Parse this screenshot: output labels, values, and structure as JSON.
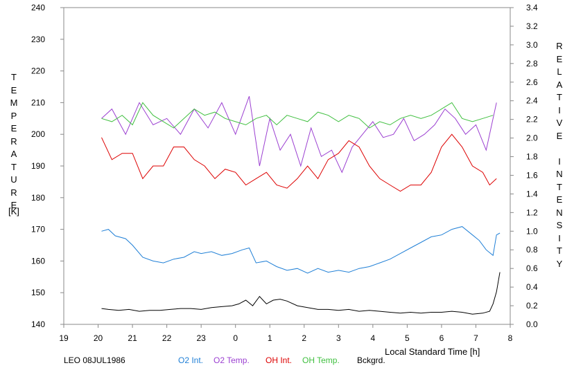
{
  "chart_data": {
    "type": "line",
    "xlabel": "Local Standard Time [h]",
    "ylabel_left": "TEMPERATURE",
    "ylabel_left_unit": "[K]",
    "ylabel_right": "RELATIVE INTENSITY",
    "x_ticks": [
      "19",
      "20",
      "21",
      "22",
      "23",
      "0",
      "1",
      "2",
      "3",
      "4",
      "5",
      "6",
      "7",
      "8"
    ],
    "xlim": [
      19,
      32
    ],
    "ylim_left": [
      140,
      240
    ],
    "ylim_right": [
      0.0,
      3.4
    ],
    "y_ticks_left": [
      "140",
      "150",
      "160",
      "170",
      "180",
      "190",
      "200",
      "210",
      "220",
      "230",
      "240"
    ],
    "y_ticks_right": [
      "0.0",
      "0.2",
      "0.4",
      "0.6",
      "0.8",
      "1.0",
      "1.2",
      "1.4",
      "1.6",
      "1.8",
      "2.0",
      "2.2",
      "2.4",
      "2.6",
      "2.8",
      "3.0",
      "3.2",
      "3.4"
    ],
    "station": "LEO 08JUL1986",
    "series": [
      {
        "name": "O2 Int.",
        "axis": "right",
        "color": "#1f7fd6",
        "x": [
          20.1,
          20.3,
          20.5,
          20.8,
          21.0,
          21.3,
          21.6,
          21.9,
          22.2,
          22.5,
          22.8,
          23.0,
          23.3,
          23.6,
          23.9,
          24.2,
          24.4,
          24.6,
          24.9,
          25.2,
          25.5,
          25.8,
          26.1,
          26.4,
          26.7,
          27.0,
          27.3,
          27.6,
          27.9,
          28.2,
          28.5,
          28.8,
          29.1,
          29.4,
          29.7,
          30.0,
          30.3,
          30.6,
          30.9,
          31.1,
          31.3,
          31.5,
          31.6,
          31.7
        ],
        "y": [
          1.0,
          1.02,
          0.95,
          0.92,
          0.85,
          0.72,
          0.68,
          0.66,
          0.7,
          0.72,
          0.78,
          0.76,
          0.78,
          0.74,
          0.76,
          0.8,
          0.82,
          0.66,
          0.68,
          0.62,
          0.58,
          0.6,
          0.55,
          0.6,
          0.56,
          0.58,
          0.56,
          0.6,
          0.62,
          0.66,
          0.7,
          0.76,
          0.82,
          0.88,
          0.94,
          0.96,
          1.02,
          1.05,
          0.96,
          0.9,
          0.8,
          0.74,
          0.96,
          0.98
        ]
      },
      {
        "name": "O2 Temp.",
        "axis": "left",
        "color": "#9b3fd1",
        "x": [
          20.1,
          20.4,
          20.8,
          21.2,
          21.6,
          22.0,
          22.4,
          22.8,
          23.2,
          23.6,
          24.0,
          24.4,
          24.7,
          25.0,
          25.3,
          25.6,
          25.9,
          26.2,
          26.5,
          26.8,
          27.1,
          27.4,
          27.7,
          28.0,
          28.3,
          28.6,
          28.9,
          29.2,
          29.5,
          29.8,
          30.1,
          30.4,
          30.7,
          31.0,
          31.3,
          31.6
        ],
        "y": [
          205,
          208,
          200,
          210,
          203,
          205,
          200,
          208,
          202,
          210,
          200,
          212,
          190,
          205,
          195,
          200,
          190,
          202,
          193,
          195,
          188,
          196,
          200,
          204,
          199,
          200,
          205,
          198,
          200,
          203,
          208,
          205,
          200,
          203,
          195,
          210
        ]
      },
      {
        "name": "OH Int.",
        "axis": "left",
        "color": "#dd0000",
        "x": [
          20.1,
          20.4,
          20.7,
          21.0,
          21.3,
          21.6,
          21.9,
          22.2,
          22.5,
          22.8,
          23.1,
          23.4,
          23.7,
          24.0,
          24.3,
          24.6,
          24.9,
          25.2,
          25.5,
          25.8,
          26.1,
          26.4,
          26.7,
          27.0,
          27.3,
          27.6,
          27.9,
          28.2,
          28.5,
          28.8,
          29.1,
          29.4,
          29.7,
          30.0,
          30.3,
          30.6,
          30.9,
          31.2,
          31.4,
          31.6
        ],
        "y": [
          199,
          192,
          194,
          194,
          186,
          190,
          190,
          196,
          196,
          192,
          190,
          186,
          189,
          188,
          184,
          186,
          188,
          184,
          183,
          186,
          190,
          186,
          192,
          194,
          198,
          196,
          190,
          186,
          184,
          182,
          184,
          184,
          188,
          196,
          200,
          196,
          190,
          188,
          184,
          186
        ]
      },
      {
        "name": "OH Temp.",
        "axis": "left",
        "color": "#3fbf3f",
        "x": [
          20.1,
          20.4,
          20.7,
          21.0,
          21.3,
          21.6,
          21.9,
          22.2,
          22.5,
          22.8,
          23.1,
          23.4,
          23.7,
          24.0,
          24.3,
          24.6,
          24.9,
          25.2,
          25.5,
          25.8,
          26.1,
          26.4,
          26.7,
          27.0,
          27.3,
          27.6,
          27.9,
          28.2,
          28.5,
          28.8,
          29.1,
          29.4,
          29.7,
          30.0,
          30.3,
          30.6,
          30.9,
          31.2,
          31.5
        ],
        "y": [
          205,
          204,
          206,
          203,
          210,
          206,
          204,
          202,
          205,
          208,
          206,
          207,
          205,
          204,
          203,
          205,
          206,
          203,
          206,
          205,
          204,
          207,
          206,
          204,
          206,
          205,
          202,
          204,
          203,
          205,
          206,
          205,
          206,
          208,
          210,
          205,
          204,
          205,
          206
        ]
      },
      {
        "name": "Bckgrd.",
        "axis": "right",
        "color": "#000000",
        "x": [
          20.1,
          20.3,
          20.6,
          20.9,
          21.2,
          21.5,
          21.8,
          22.1,
          22.4,
          22.7,
          23.0,
          23.3,
          23.6,
          23.9,
          24.1,
          24.3,
          24.5,
          24.7,
          24.9,
          25.1,
          25.3,
          25.5,
          25.8,
          26.1,
          26.4,
          26.7,
          27.0,
          27.3,
          27.6,
          27.9,
          28.2,
          28.5,
          28.8,
          29.1,
          29.4,
          29.7,
          30.0,
          30.3,
          30.6,
          30.9,
          31.2,
          31.4,
          31.5,
          31.6,
          31.7
        ],
        "y": [
          0.17,
          0.16,
          0.15,
          0.16,
          0.14,
          0.15,
          0.15,
          0.16,
          0.17,
          0.17,
          0.16,
          0.18,
          0.19,
          0.2,
          0.22,
          0.26,
          0.2,
          0.3,
          0.22,
          0.26,
          0.27,
          0.25,
          0.2,
          0.18,
          0.16,
          0.16,
          0.15,
          0.16,
          0.14,
          0.15,
          0.14,
          0.13,
          0.12,
          0.13,
          0.12,
          0.13,
          0.13,
          0.14,
          0.13,
          0.11,
          0.12,
          0.14,
          0.22,
          0.35,
          0.56
        ]
      }
    ]
  }
}
